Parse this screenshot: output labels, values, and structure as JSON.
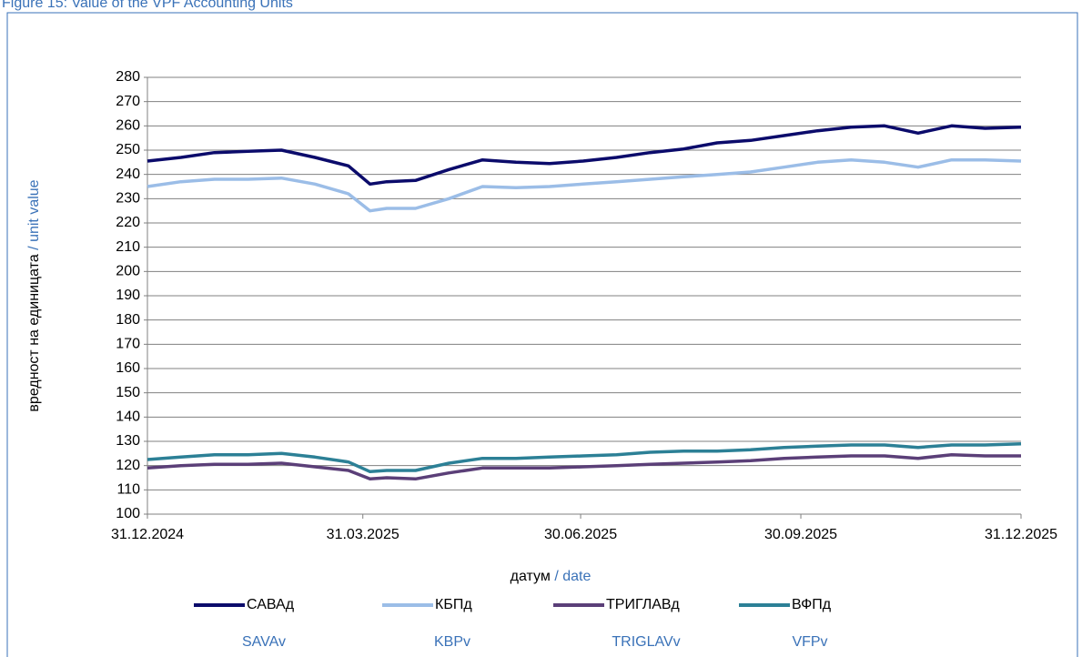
{
  "chart_data": {
    "type": "line",
    "title": "Figure 15: Value of the VPF Accounting Units",
    "ylabel": "вредност на единицата",
    "ylabel_en": "/ unit value",
    "xlabel": "датум",
    "xlabel_en": "/ date",
    "x": [
      "31.12.2024",
      "14.01.2025",
      "28.01.2025",
      "11.02.2025",
      "25.02.2025",
      "11.03.2025",
      "25.03.2025",
      "03.04.2025",
      "10.04.2025",
      "22.04.2025",
      "06.05.2025",
      "20.05.2025",
      "03.06.2025",
      "17.06.2025",
      "01.07.2025",
      "15.07.2025",
      "29.07.2025",
      "12.08.2025",
      "26.08.2025",
      "09.09.2025",
      "23.09.2025",
      "07.10.2025",
      "21.10.2025",
      "04.11.2025",
      "18.11.2025",
      "02.12.2025",
      "16.12.2025",
      "31.12.2025"
    ],
    "series": [
      {
        "name": "САВАд",
        "name_en": "SAVAv",
        "color": "#0b0b6b",
        "values": [
          245.5,
          247,
          249,
          249.5,
          250,
          247,
          243.5,
          236,
          237,
          237.5,
          242,
          246,
          245,
          244.5,
          245.5,
          247,
          249,
          250.5,
          253,
          254,
          256,
          258,
          259.5,
          260,
          257,
          260,
          259,
          259.5
        ]
      },
      {
        "name": "КБПд",
        "name_en": "KBPv",
        "color": "#9bbde7",
        "values": [
          235,
          237,
          238,
          238,
          238.5,
          236,
          232,
          225,
          226,
          226,
          230,
          235,
          234.5,
          235,
          236,
          237,
          238,
          239,
          240,
          241,
          243,
          245,
          246,
          245,
          243,
          246,
          246,
          245.5
        ]
      },
      {
        "name": "ТРИГЛАВд",
        "name_en": "TRIGLAVv",
        "color": "#5b3f78",
        "values": [
          119,
          120,
          120.5,
          120.5,
          121,
          119.5,
          118,
          114.5,
          115,
          114.5,
          117,
          119,
          119,
          119,
          119.5,
          120,
          120.5,
          121,
          121.5,
          122,
          123,
          123.5,
          124,
          124,
          123,
          124.5,
          124,
          124
        ]
      },
      {
        "name": "ВФПд",
        "name_en": "VFPv",
        "color": "#2c8096",
        "values": [
          122.5,
          123.5,
          124.5,
          124.5,
          125,
          123.5,
          121.5,
          117.5,
          118,
          118,
          121,
          123,
          123,
          123.5,
          124,
          124.5,
          125.5,
          126,
          126,
          126.5,
          127.5,
          128,
          128.5,
          128.5,
          127.5,
          128.5,
          128.5,
          129
        ]
      }
    ],
    "xlim": [
      "31.12.2024",
      "31.12.2025"
    ],
    "xticks": [
      "31.12.2024",
      "31.03.2025",
      "30.06.2025",
      "30.09.2025",
      "31.12.2025"
    ],
    "ylim": [
      100,
      280
    ],
    "yticks": [
      100,
      110,
      120,
      130,
      140,
      150,
      160,
      170,
      180,
      190,
      200,
      210,
      220,
      230,
      240,
      250,
      260,
      270,
      280
    ],
    "grid": true
  }
}
